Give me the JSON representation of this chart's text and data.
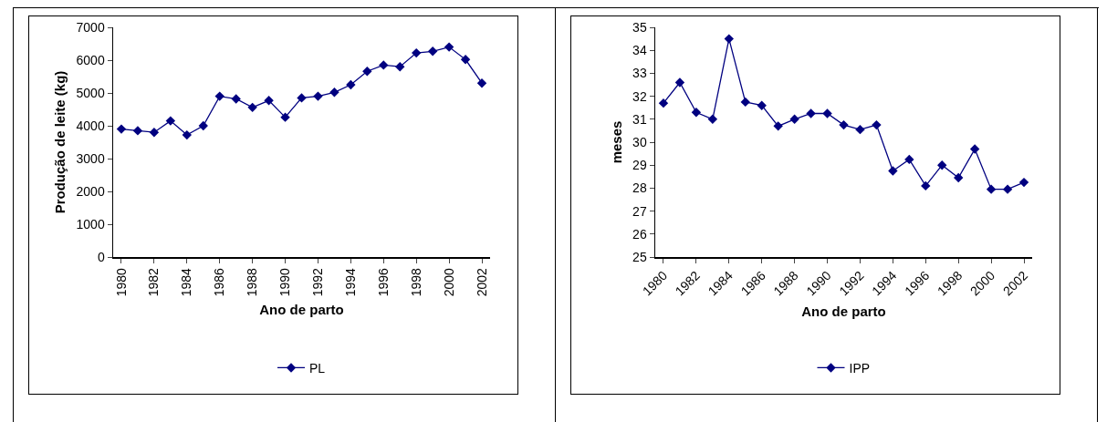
{
  "chart_data": [
    {
      "type": "line",
      "xlabel": "Ano de parto",
      "ylabel": "Produção de leite (kg)",
      "categories": [
        "1980",
        null,
        "1982",
        null,
        "1984",
        null,
        "1986",
        null,
        "1988",
        null,
        "1990",
        null,
        "1992",
        null,
        "1994",
        null,
        "1996",
        null,
        "1998",
        null,
        "2000",
        null,
        "2002"
      ],
      "series": [
        {
          "name": "PL",
          "color": "#000080",
          "values": [
            3900,
            3850,
            3800,
            4150,
            3720,
            4000,
            4900,
            4820,
            4560,
            4770,
            4260,
            4850,
            4900,
            5020,
            5250,
            5660,
            5850,
            5800,
            6220,
            6270,
            6400,
            6020,
            5300
          ]
        }
      ],
      "ylim": [
        0,
        7000
      ],
      "yticks": [
        0,
        1000,
        2000,
        3000,
        4000,
        5000,
        6000,
        7000
      ],
      "grid": false,
      "legend": "bottom",
      "marker": "diamond",
      "line_style": "solid"
    },
    {
      "type": "line",
      "xlabel": "Ano de parto",
      "ylabel": "meses",
      "categories": [
        "1980",
        null,
        "1982",
        null,
        "1984",
        null,
        "1986",
        null,
        "1988",
        null,
        "1990",
        null,
        "1992",
        null,
        "1994",
        null,
        "1996",
        null,
        "1998",
        null,
        "2000",
        null,
        "2002"
      ],
      "series": [
        {
          "name": "IPP",
          "color": "#000080",
          "values": [
            31.7,
            32.6,
            31.3,
            31.0,
            34.5,
            31.75,
            31.6,
            30.7,
            31.0,
            31.25,
            31.25,
            30.75,
            30.55,
            30.75,
            28.75,
            29.25,
            28.1,
            29.0,
            28.45,
            29.7,
            27.95,
            27.95,
            28.25
          ]
        }
      ],
      "ylim": [
        25,
        35
      ],
      "yticks": [
        25,
        26,
        27,
        28,
        29,
        30,
        31,
        32,
        33,
        34,
        35
      ],
      "grid": false,
      "legend": "bottom",
      "marker": "diamond",
      "line_style": "solid"
    }
  ]
}
